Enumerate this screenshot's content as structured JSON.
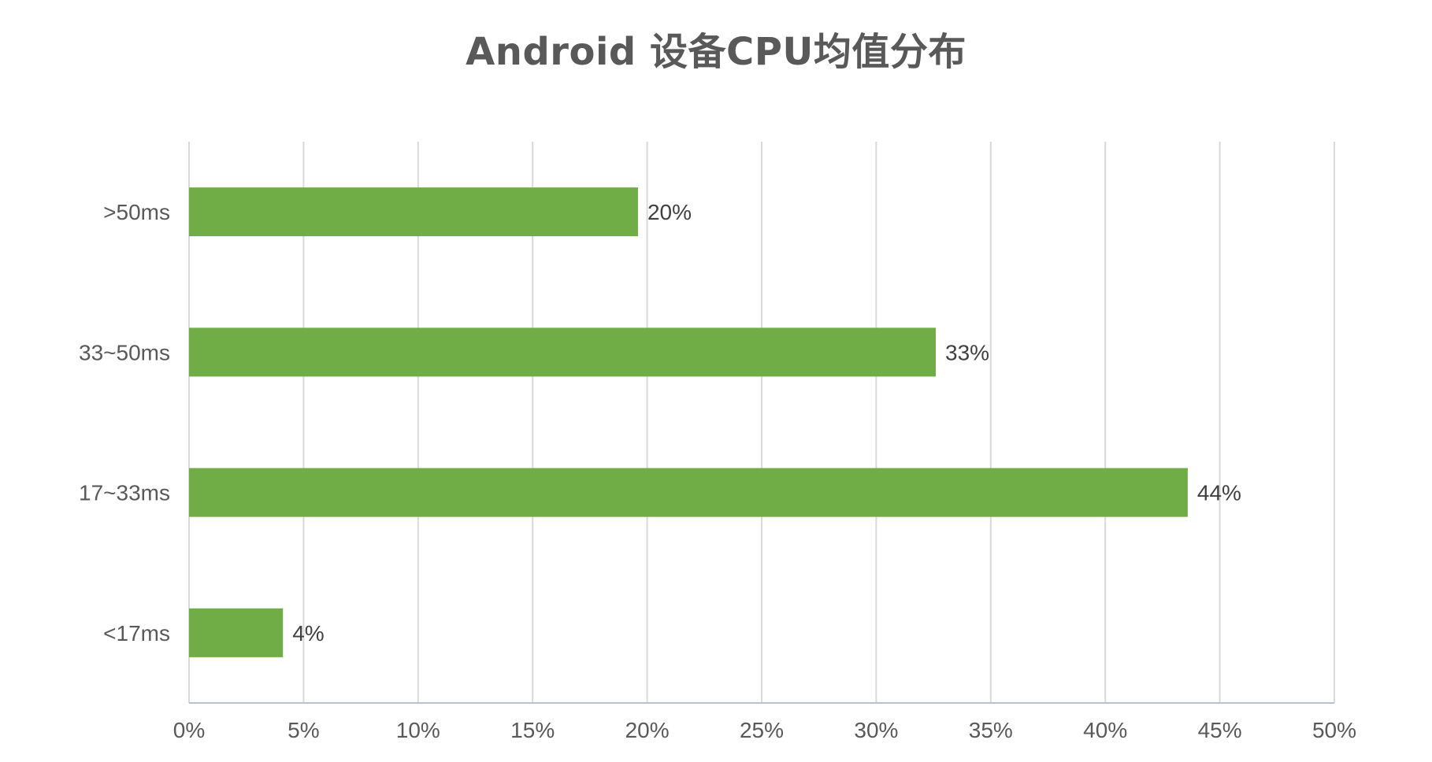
{
  "chart_data": {
    "type": "bar",
    "orientation": "horizontal",
    "title": "Android 设备CPU均值分布",
    "categories": [
      ">50ms",
      "33~50ms",
      "17~33ms",
      "<17ms"
    ],
    "values": [
      19.6,
      32.6,
      43.6,
      4.1
    ],
    "data_labels": [
      "20%",
      "33%",
      "44%",
      "4%"
    ],
    "xlim": [
      0,
      50
    ],
    "x_ticks": [
      0,
      5,
      10,
      15,
      20,
      25,
      30,
      35,
      40,
      45,
      50
    ],
    "x_tick_labels": [
      "0%",
      "5%",
      "10%",
      "15%",
      "20%",
      "25%",
      "30%",
      "35%",
      "40%",
      "45%",
      "50%"
    ],
    "xlabel": "",
    "ylabel": "",
    "grid": "vertical",
    "legend": "none",
    "colors": {
      "bar": "#70ad47",
      "grid": "#d9d9d9",
      "axis": "#b4c1d6",
      "title": "#595959",
      "tick_text": "#595959",
      "label_text": "#404040"
    }
  }
}
